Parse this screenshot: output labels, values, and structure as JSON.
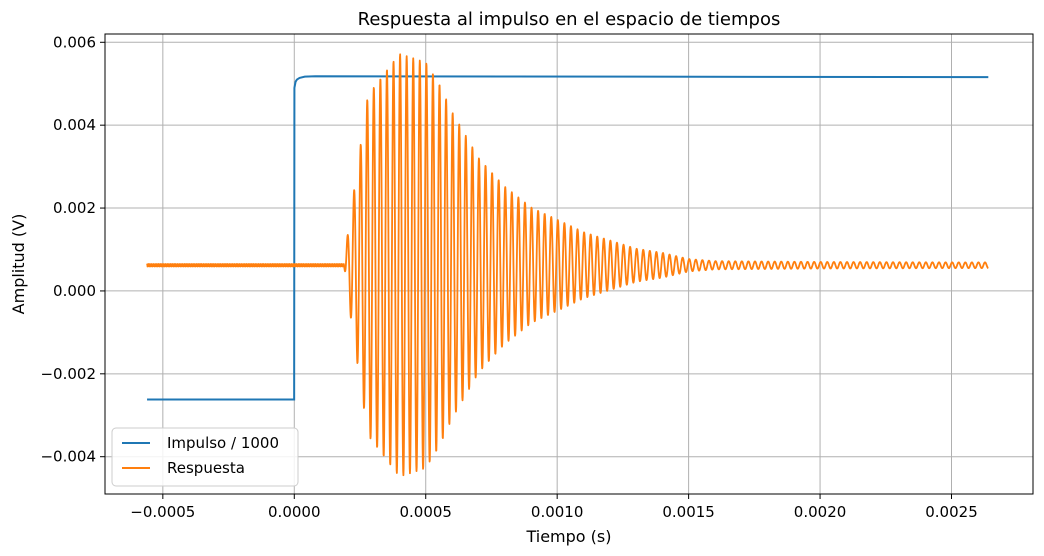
{
  "chart_data": {
    "type": "line",
    "title": "Respuesta al impulso en el espacio de tiempos",
    "xlabel": "Tiempo (s)",
    "ylabel": "Amplitud (V)",
    "xlim": [
      -0.00072,
      0.00281
    ],
    "ylim": [
      -0.0049,
      0.0062
    ],
    "xticks": [
      -0.0005,
      0.0,
      0.0005,
      0.001,
      0.0015,
      0.002,
      0.0025
    ],
    "xtick_labels": [
      "−0.0005",
      "0.0000",
      "0.0005",
      "0.0010",
      "0.0015",
      "0.0020",
      "0.0025"
    ],
    "yticks": [
      -0.004,
      -0.002,
      0.0,
      0.002,
      0.004,
      0.006
    ],
    "ytick_labels": [
      "−0.004",
      "−0.002",
      "0.000",
      "0.002",
      "0.004",
      "0.006"
    ],
    "grid": true,
    "legend_position": "lower-left",
    "series": [
      {
        "name": "Impulso / 1000",
        "color": "#1f77b4",
        "x": [
          -0.00056,
          -5e-07,
          5e-07,
          5e-06,
          1e-05,
          2e-05,
          4e-05,
          8e-05,
          0.00264
        ],
        "y": [
          -0.00262,
          -0.00262,
          0.0049,
          0.00505,
          0.0051,
          0.00514,
          0.00517,
          0.00518,
          0.00516
        ]
      },
      {
        "name": "Respuesta",
        "color": "#ff7f0e",
        "generator": "damped_sine",
        "x_start": -0.00056,
        "x_end": 0.00264,
        "baseline": 0.00062,
        "onset": 0.00019,
        "frequency_hz": 40000,
        "envelope": {
          "x": [
            -0.00056,
            0.00019,
            0.0002,
            0.00025,
            0.00028,
            0.00035,
            0.0004,
            0.00045,
            0.0005,
            0.00055,
            0.0006,
            0.0007,
            0.0008,
            0.0009,
            0.001,
            0.0011,
            0.0012,
            0.0013,
            0.0014,
            0.0015,
            0.0016,
            0.002,
            0.0025,
            0.00264
          ],
          "y": [
            3e-05,
            3e-05,
            0.0006,
            0.0028,
            0.0041,
            0.0047,
            0.0051,
            0.005,
            0.0049,
            0.0044,
            0.0037,
            0.0026,
            0.0019,
            0.0014,
            0.0011,
            0.0008,
            0.0006,
            0.0004,
            0.0003,
            0.00015,
            0.0001,
            8e-05,
            7e-05,
            7e-05
          ]
        }
      }
    ]
  }
}
